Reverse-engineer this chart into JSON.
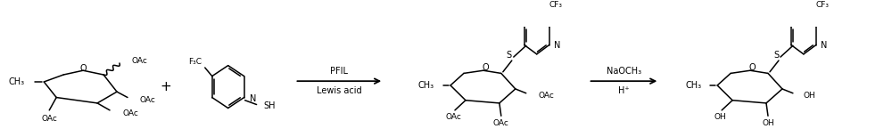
{
  "bg_color": "#ffffff",
  "line_color": "#000000",
  "text_color": "#000000",
  "figsize": [
    10.0,
    1.54
  ],
  "dpi": 100,
  "arrow1_label_top": "PFIL",
  "arrow1_label_bot": "Lewis acid",
  "arrow2_label_top": "NaOCH₃",
  "arrow2_label_bot": "H⁺",
  "lw": 1.1
}
